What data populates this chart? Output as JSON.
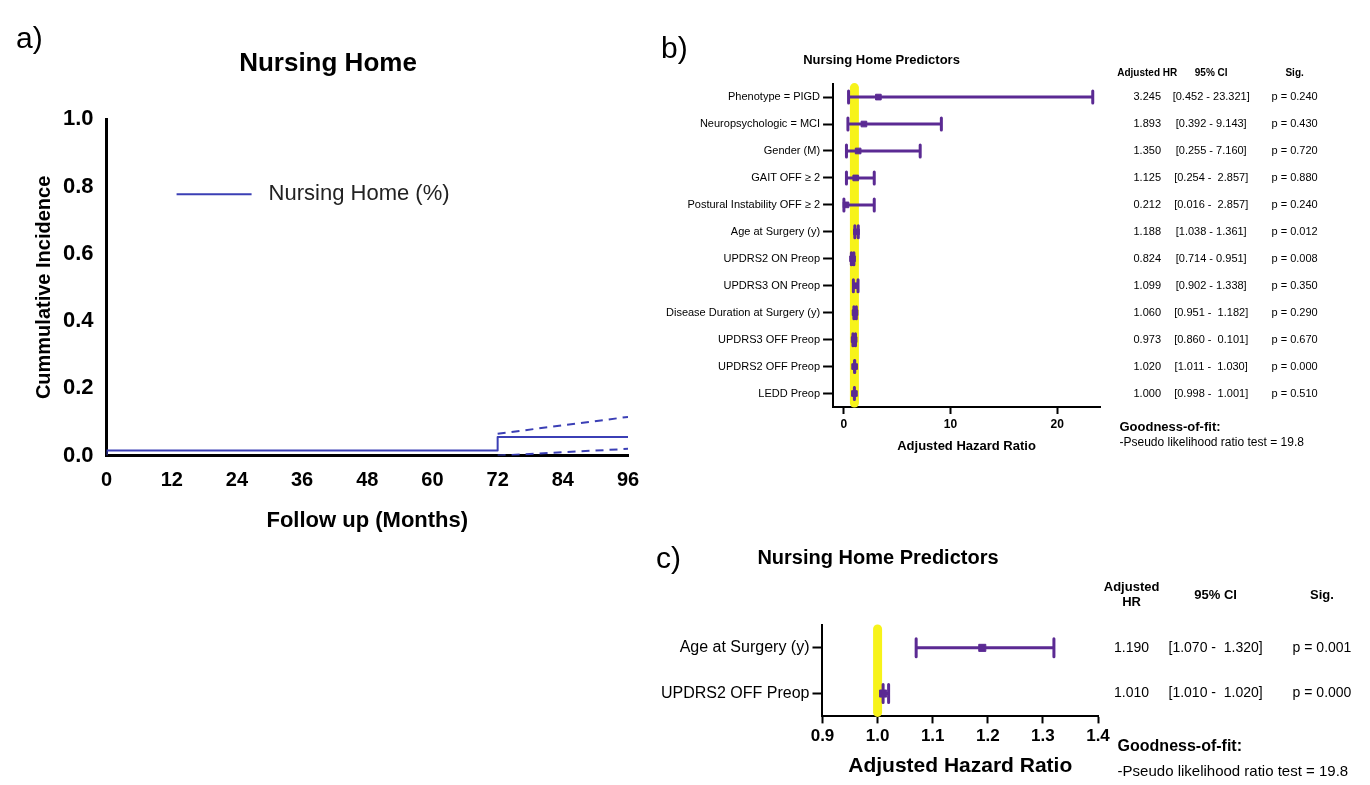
{
  "chart_data": [
    {
      "type": "line",
      "title": "Nursing Home",
      "xlabel": "Follow up (Months)",
      "ylabel": "Cummulative Incidence",
      "legend": "top",
      "grid": false,
      "xlim": [
        0,
        96
      ],
      "xticks": [
        0,
        12,
        24,
        36,
        48,
        60,
        72,
        84,
        96
      ],
      "ylim": [
        0,
        1
      ],
      "yticks": [
        {
          "value": 0,
          "label": "0.0"
        },
        0.2,
        0.4,
        0.6,
        0.8,
        {
          "value": 1,
          "label": "1.0"
        }
      ],
      "annotations": [
        "a)"
      ],
      "series": [
        {
          "name": "Nursing Home (%)",
          "type": "step",
          "color": "#3b3fb5",
          "x": [
            0,
            72,
            96
          ],
          "values": [
            0,
            0.015,
            0.055
          ]
        },
        {
          "type": "line",
          "line_style": "dashed",
          "color": "#3b3fb5",
          "x": [
            72,
            96
          ],
          "values": [
            0.065,
            0.115
          ]
        },
        {
          "type": "line",
          "line_style": "dashed",
          "color": "#3b3fb5",
          "x": [
            72,
            96
          ],
          "values": [
            0,
            0.02
          ]
        }
      ]
    },
    {
      "type": "scatter",
      "orientation": "horizontal",
      "marker": "square",
      "title": "Nursing Home Predictors",
      "xlabel": "Adjusted Hazard Ratio",
      "color": "#5b2a93",
      "xlim": [
        -1,
        24
      ],
      "xticks": [
        0,
        10,
        20
      ],
      "categories": [
        "Phenotype = PIGD",
        "Neuropsychologic = MCI",
        "Gender (M)",
        "GAIT OFF ≥ 2",
        "Postural Instability OFF ≥ 2",
        "Age at Surgery (y)",
        "UPDRS2 ON Preop",
        "UPDRS3 ON Preop",
        "Disease Duration at Surgery (y)",
        "UPDRS3 OFF Preop",
        "UPDRS2 OFF Preop",
        "LEDD Preop"
      ],
      "values": [
        3.245,
        1.893,
        1.35,
        1.125,
        0.212,
        1.188,
        0.824,
        1.099,
        1.06,
        0.973,
        1.02,
        1.0
      ],
      "errors": [
        [
          0.452,
          23.321
        ],
        [
          0.392,
          9.143
        ],
        [
          0.255,
          7.16
        ],
        [
          0.254,
          2.857
        ],
        [
          0.016,
          2.857
        ],
        [
          1.038,
          1.361
        ],
        [
          0.714,
          0.951
        ],
        [
          0.902,
          1.338
        ],
        [
          0.951,
          1.182
        ],
        [
          0.86,
          1.1
        ],
        [
          1.011,
          1.03
        ],
        [
          0.998,
          1.001
        ]
      ],
      "value_labels": [
        "3.245",
        "1.893",
        "1.350",
        "1.125",
        "0.212",
        "1.188",
        "0.824",
        "1.099",
        "1.060",
        "0.973",
        "1.020",
        "1.000"
      ],
      "ref_lines": [
        {
          "axis": "x",
          "value": 1,
          "color": "#f7f31a"
        }
      ],
      "annotations": [
        "b)",
        "Adjusted HR",
        "95% CI",
        "Sig.",
        "[0.452 - 23.321]",
        "p = 0.240",
        "[0.392 - 9.143]",
        "p = 0.430",
        "[0.255 - 7.160]",
        "p = 0.720",
        "[0.254 -  2.857]",
        "p = 0.880",
        "[0.016 -  2.857]",
        "p = 0.240",
        "[1.038 - 1.361]",
        "p = 0.012",
        "[0.714 - 0.951]",
        "p = 0.008",
        "[0.902 - 1.338]",
        "p = 0.350",
        "[0.951 -  1.182]",
        "p = 0.290",
        "[0.860 -  0.101]",
        "p = 0.670",
        "[1.011 -  1.030]",
        "p = 0.000",
        "[0.998 -  1.001]",
        "p = 0.510",
        "Goodness-of-fit:",
        "-Pseudo likelihood ratio test = 19.8"
      ]
    },
    {
      "type": "scatter",
      "orientation": "horizontal",
      "marker": "square",
      "title": "Nursing Home Predictors",
      "xlabel": "Adjusted Hazard Ratio",
      "color": "#5b2a93",
      "xlim": [
        0.9,
        1.4
      ],
      "xticks": [
        0.9,
        {
          "value": 1,
          "label": "1.0"
        },
        1.1,
        1.2,
        1.3,
        1.4
      ],
      "categories": [
        "Age at Surgery (y)",
        "UPDRS2 OFF Preop"
      ],
      "values": [
        1.19,
        1.01
      ],
      "errors": [
        [
          1.07,
          1.32
        ],
        [
          1.01,
          1.02
        ]
      ],
      "value_labels": [
        "1.190",
        "1.010"
      ],
      "ref_lines": [
        {
          "axis": "x",
          "value": 1,
          "color": "#f7f31a"
        }
      ],
      "annotations": [
        "c)",
        "Adjusted HR",
        "95% CI",
        "Sig.",
        "[1.070 -  1.320]",
        "p = 0.001",
        "[1.010 -  1.020]",
        "p = 0.000",
        "Goodness-of-fit:",
        "-Pseudo likelihood ratio test = 19.8"
      ]
    }
  ]
}
